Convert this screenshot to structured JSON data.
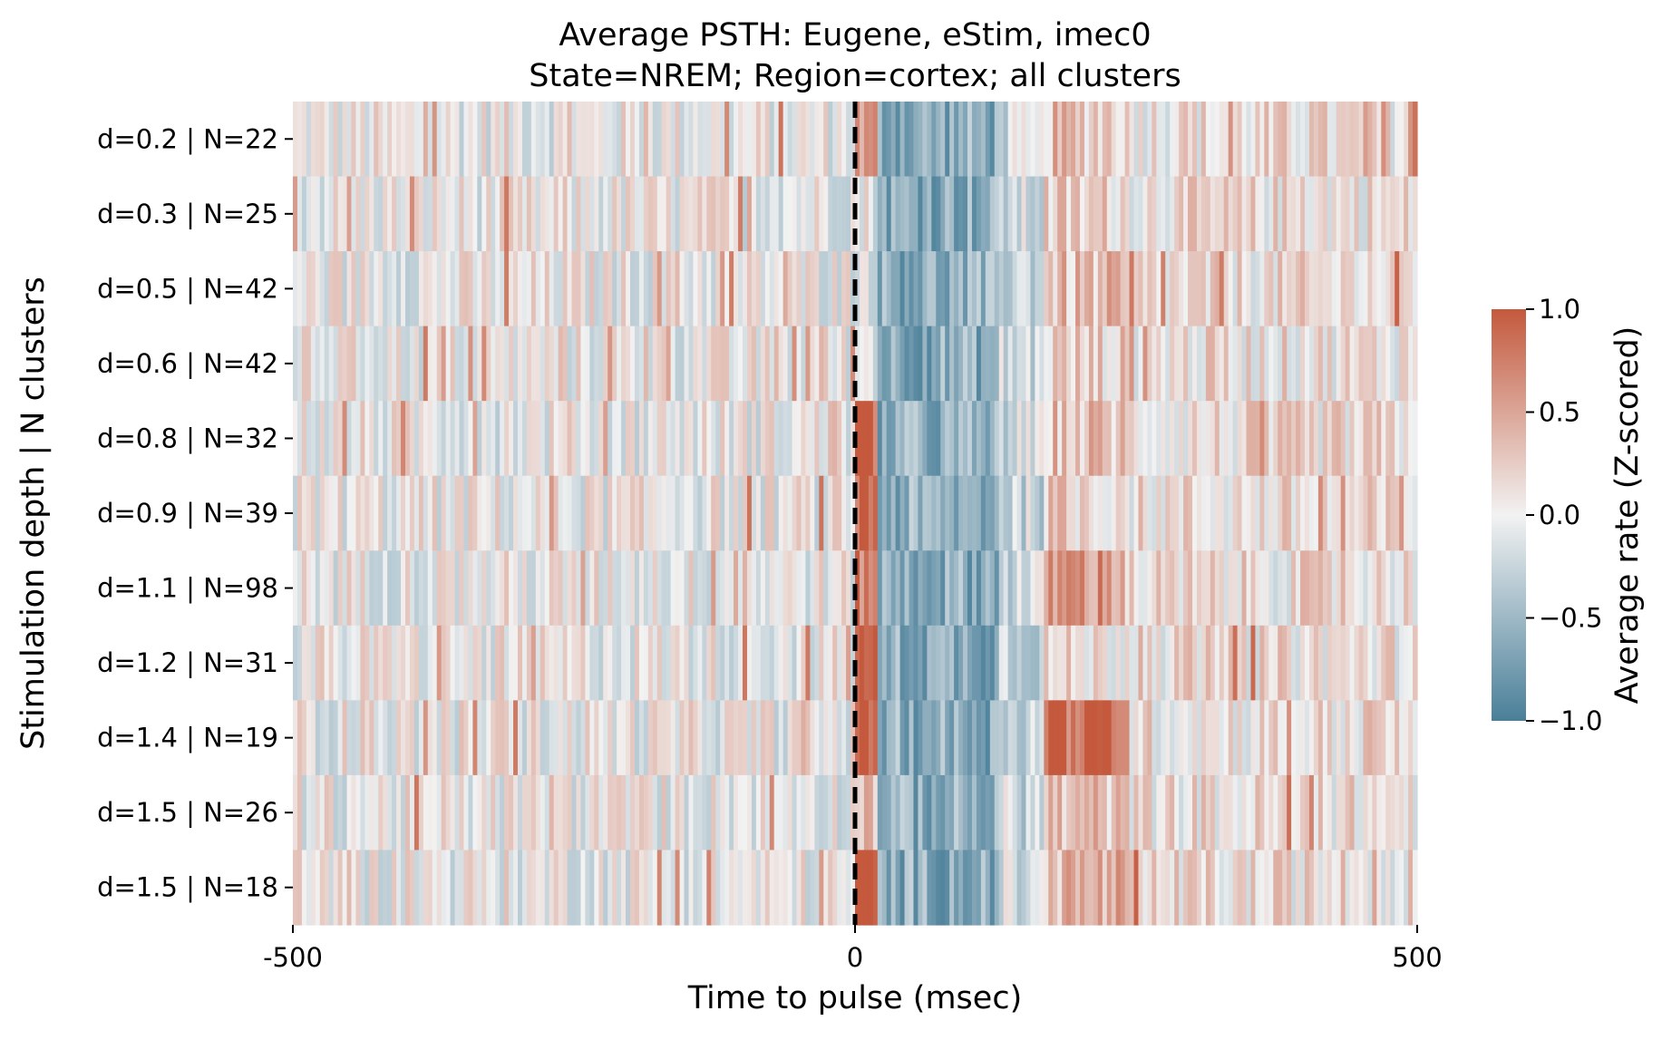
{
  "chart_data": {
    "type": "heatmap",
    "title": "Average PSTH: Eugene, eStim, imec0",
    "subtitle": "State=NREM; Region=cortex; all clusters",
    "xlabel": "Time to pulse (msec)",
    "ylabel": "Stimulation depth | N clusters",
    "xlim": [
      -500,
      500
    ],
    "x_ticks": [
      "-500",
      "0",
      "500"
    ],
    "x_tick_values": [
      -500,
      0,
      500
    ],
    "vline": {
      "x": 0,
      "style": "dashed",
      "color": "#000000"
    },
    "rows": [
      {
        "label": "d=0.2 | N=22",
        "depth": 0.2,
        "n": 22
      },
      {
        "label": "d=0.3 | N=25",
        "depth": 0.3,
        "n": 25
      },
      {
        "label": "d=0.5 | N=42",
        "depth": 0.5,
        "n": 42
      },
      {
        "label": "d=0.6 | N=42",
        "depth": 0.6,
        "n": 42
      },
      {
        "label": "d=0.8 | N=32",
        "depth": 0.8,
        "n": 32
      },
      {
        "label": "d=0.9 | N=39",
        "depth": 0.9,
        "n": 39
      },
      {
        "label": "d=1.1 | N=98",
        "depth": 1.1,
        "n": 98
      },
      {
        "label": "d=1.2 | N=31",
        "depth": 1.2,
        "n": 31
      },
      {
        "label": "d=1.4 | N=19",
        "depth": 1.4,
        "n": 19
      },
      {
        "label": "d=1.5 | N=26",
        "depth": 1.5,
        "n": 26
      },
      {
        "label": "d=1.5 | N=18",
        "depth": 1.5,
        "n": 18
      }
    ],
    "response_profile": {
      "time_bins_ms": [
        -500,
        500
      ],
      "segments_ms": [
        {
          "from": 0,
          "to": 20,
          "value": 1.0
        },
        {
          "from": 20,
          "to": 130,
          "value": -0.6
        },
        {
          "from": 130,
          "to": 170,
          "value": -0.2
        },
        {
          "from": 170,
          "to": 240,
          "value": 0.6
        },
        {
          "from": 240,
          "to": 500,
          "value": 0.1
        }
      ],
      "row_onset_strength": [
        0.5,
        0.0,
        0.0,
        0.0,
        0.9,
        0.9,
        0.8,
        1.0,
        1.0,
        0.4,
        1.0
      ],
      "row_late_strength": [
        0.3,
        0.2,
        0.3,
        0.2,
        0.3,
        0.2,
        0.6,
        0.1,
        0.9,
        0.3,
        0.4
      ],
      "noise_amplitude": 0.35
    },
    "colorbar": {
      "label": "Average rate (Z-scored)",
      "vmin": -1.0,
      "vmax": 1.0,
      "ticks": [
        {
          "value": 1.0,
          "label": "1.0"
        },
        {
          "value": 0.5,
          "label": "0.5"
        },
        {
          "value": 0.0,
          "label": "0.0"
        },
        {
          "value": -0.5,
          "label": "−0.5"
        },
        {
          "value": -1.0,
          "label": "−1.0"
        }
      ]
    },
    "colors": {
      "low": "#4a7f99",
      "mid": "#f2f2f2",
      "high": "#c4593d"
    },
    "grid": false
  }
}
